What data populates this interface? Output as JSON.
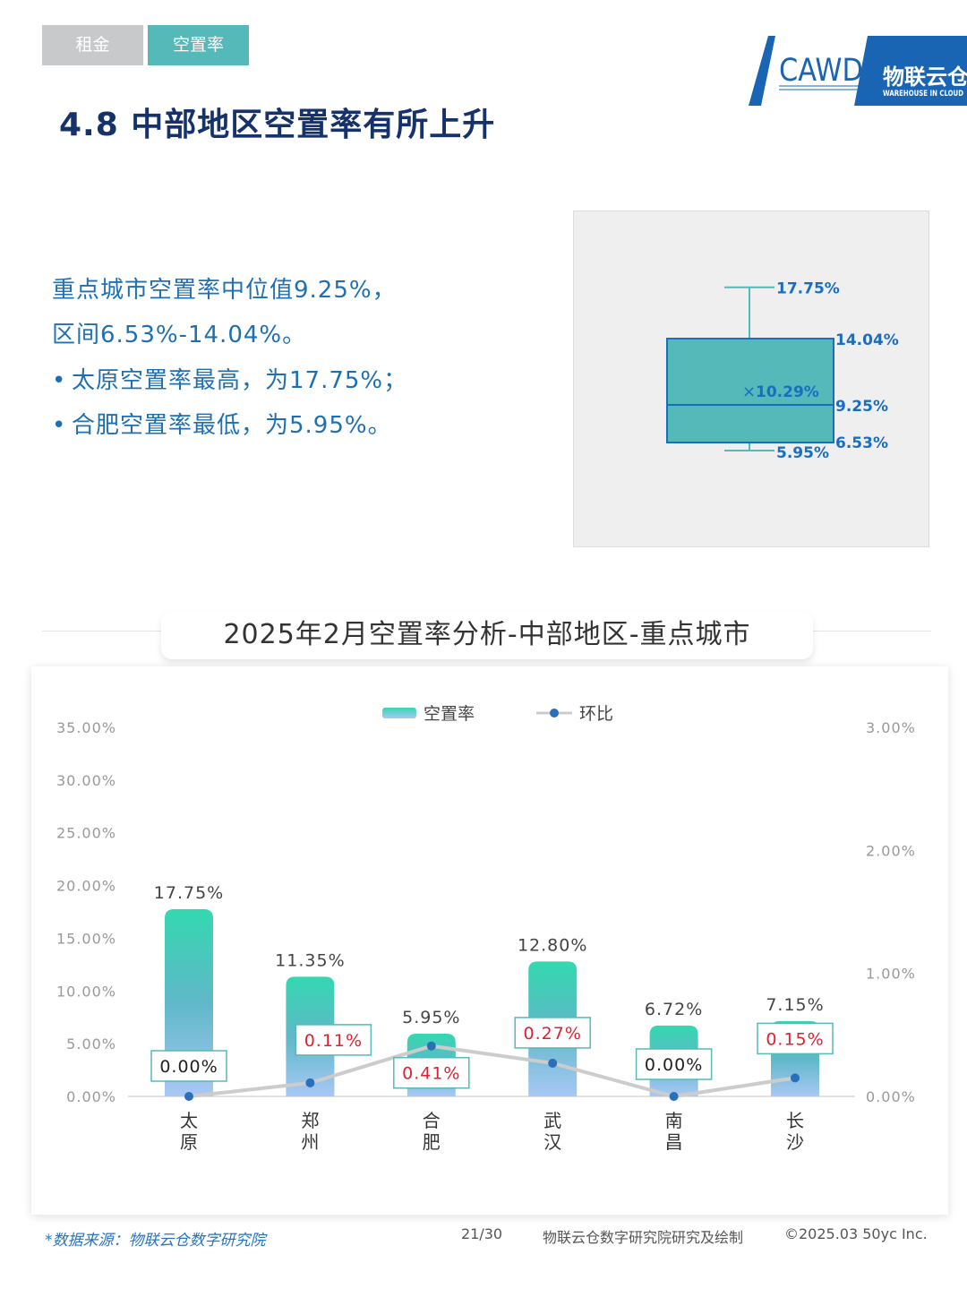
{
  "tabs": [
    {
      "label": "租金"
    },
    {
      "label": "空置率"
    }
  ],
  "logo": {
    "cawd": "CAWD",
    "brand": "物联云仓",
    "tagline": "WAREHOUSE IN CLOUD"
  },
  "page_title": "4.8 中部地区空置率有所上升",
  "summary": {
    "line1": "重点城市空置率中位值9.25%，",
    "line2": "区间6.53%-14.04%。",
    "bullet1": "太原空置率最高，为17.75%；",
    "bullet2": "合肥空置率最低，为5.95%。"
  },
  "boxplot": {
    "max": 17.75,
    "q3": 14.04,
    "mean": 10.29,
    "median": 9.25,
    "q1": 6.53,
    "min": 5.95,
    "labels": {
      "max": "17.75%",
      "q3": "14.04%",
      "mean": "10.29%",
      "median": "9.25%",
      "q1": "6.53%",
      "min": "5.95%"
    }
  },
  "chart_title": "2025年2月空置率分析-中部地区-重点城市",
  "chart_data": {
    "type": "bar",
    "categories": [
      "太原",
      "郑州",
      "合肥",
      "武汉",
      "南昌",
      "长沙"
    ],
    "series": [
      {
        "name": "空置率",
        "type": "bar",
        "axis": "left",
        "values": [
          17.75,
          11.35,
          5.95,
          12.8,
          6.72,
          7.15
        ],
        "labels": [
          "17.75%",
          "11.35%",
          "5.95%",
          "12.80%",
          "6.72%",
          "7.15%"
        ]
      },
      {
        "name": "环比",
        "type": "line",
        "axis": "right",
        "values": [
          0.0,
          0.11,
          0.41,
          0.27,
          0.0,
          0.15
        ],
        "labels": [
          "0.00%",
          "0.11%",
          "0.41%",
          "0.27%",
          "0.00%",
          "0.15%"
        ]
      }
    ],
    "y_left": {
      "ylim": [
        0,
        35
      ],
      "ticks": [
        "0.00%",
        "5.00%",
        "10.00%",
        "15.00%",
        "20.00%",
        "25.00%",
        "30.00%",
        "35.00%"
      ]
    },
    "y_right": {
      "ylim": [
        0,
        3
      ],
      "ticks": [
        "0.00%",
        "1.00%",
        "2.00%",
        "3.00%"
      ]
    },
    "legend": "top-center",
    "grid": false,
    "colors": {
      "bar_top": "#34d8b0",
      "bar_mid": "#5fb8c8",
      "bar_bottom": "#a8c8f5",
      "line": "#cccccc",
      "marker": "#2a6fb8",
      "positive_label": "#e0202e",
      "zero_label": "#222222",
      "label_border": "#56b9b9"
    }
  },
  "footer": {
    "source": "*数据来源：物联云仓数字研究院",
    "page": "21/30",
    "credit": "物联云仓数字研究院研究及绘制",
    "copyright": "©2025.03 50yc Inc."
  }
}
